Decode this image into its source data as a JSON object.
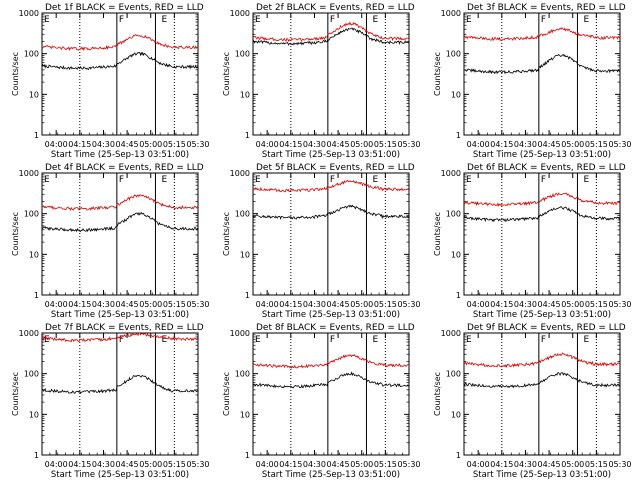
{
  "colors": {
    "events": "#000000",
    "lld": "#dd0000",
    "axes": "#000000"
  },
  "figure": {
    "xlabel": "Start Time (25-Sep-13 03:51:00)",
    "ylabel": "Counts/sec",
    "x_ticks": [
      "04:00",
      "04:15",
      "04:30",
      "04:45",
      "05:00",
      "05:15",
      "05:30"
    ],
    "y_ticks": [
      "1",
      "10",
      "100",
      "1000"
    ],
    "markers": [
      "F",
      "E"
    ],
    "title_text": {
      "suffix": "BLACK = Events, RED = LLD"
    }
  },
  "chart_data": [
    {
      "type": "line",
      "title": "Det 1f BLACK = Events, RED = LLD",
      "detector": "1f",
      "x_range_min": [
        0,
        99
      ],
      "ylim": [
        1,
        1000
      ],
      "y_scale": "log",
      "series": [
        {
          "name": "Events",
          "color": "#000000",
          "base": 50,
          "peak": 100
        },
        {
          "name": "LLD",
          "color": "#dd0000",
          "base": 150,
          "peak": 280
        }
      ]
    },
    {
      "type": "line",
      "title": "Det 2f BLACK = Events, RED = LLD",
      "detector": "2f",
      "x_range_min": [
        0,
        99
      ],
      "ylim": [
        1,
        1000
      ],
      "y_scale": "log",
      "series": [
        {
          "name": "Events",
          "color": "#000000",
          "base": 200,
          "peak": 400
        },
        {
          "name": "LLD",
          "color": "#dd0000",
          "base": 250,
          "peak": 550
        }
      ]
    },
    {
      "type": "line",
      "title": "Det 3f BLACK = Events, RED = LLD",
      "detector": "3f",
      "x_range_min": [
        0,
        99
      ],
      "ylim": [
        1,
        1000
      ],
      "y_scale": "log",
      "series": [
        {
          "name": "Events",
          "color": "#000000",
          "base": 40,
          "peak": 90
        },
        {
          "name": "LLD",
          "color": "#dd0000",
          "base": 260,
          "peak": 400
        }
      ]
    },
    {
      "type": "line",
      "title": "Det 4f BLACK = Events, RED = LLD",
      "detector": "4f",
      "x_range_min": [
        0,
        99
      ],
      "ylim": [
        1,
        1000
      ],
      "y_scale": "log",
      "series": [
        {
          "name": "Events",
          "color": "#000000",
          "base": 45,
          "peak": 100
        },
        {
          "name": "LLD",
          "color": "#dd0000",
          "base": 150,
          "peak": 280
        }
      ]
    },
    {
      "type": "line",
      "title": "Det 5f BLACK = Events, RED = LLD",
      "detector": "5f",
      "x_range_min": [
        0,
        99
      ],
      "ylim": [
        1,
        1000
      ],
      "y_scale": "log",
      "series": [
        {
          "name": "Events",
          "color": "#000000",
          "base": 90,
          "peak": 150
        },
        {
          "name": "LLD",
          "color": "#dd0000",
          "base": 420,
          "peak": 620
        }
      ]
    },
    {
      "type": "line",
      "title": "Det 6f BLACK = Events, RED = LLD",
      "detector": "6f",
      "x_range_min": [
        0,
        99
      ],
      "ylim": [
        1,
        1000
      ],
      "y_scale": "log",
      "series": [
        {
          "name": "Events",
          "color": "#000000",
          "base": 80,
          "peak": 140
        },
        {
          "name": "LLD",
          "color": "#dd0000",
          "base": 190,
          "peak": 310
        }
      ]
    },
    {
      "type": "line",
      "title": "Det 7f BLACK = Events, RED = LLD",
      "detector": "7f",
      "x_range_min": [
        0,
        99
      ],
      "ylim": [
        1,
        1000
      ],
      "y_scale": "log",
      "series": [
        {
          "name": "Events",
          "color": "#000000",
          "base": 40,
          "peak": 90
        },
        {
          "name": "LLD",
          "color": "#dd0000",
          "base": 750,
          "peak": 950
        }
      ]
    },
    {
      "type": "line",
      "title": "Det 8f BLACK = Events, RED = LLD",
      "detector": "8f",
      "x_range_min": [
        0,
        99
      ],
      "ylim": [
        1,
        1000
      ],
      "y_scale": "log",
      "series": [
        {
          "name": "Events",
          "color": "#000000",
          "base": 55,
          "peak": 100
        },
        {
          "name": "LLD",
          "color": "#dd0000",
          "base": 170,
          "peak": 280
        }
      ]
    },
    {
      "type": "line",
      "title": "Det 9f BLACK = Events, RED = LLD",
      "detector": "9f",
      "x_range_min": [
        0,
        99
      ],
      "ylim": [
        1,
        1000
      ],
      "y_scale": "log",
      "series": [
        {
          "name": "Events",
          "color": "#000000",
          "base": 55,
          "peak": 100
        },
        {
          "name": "LLD",
          "color": "#dd0000",
          "base": 180,
          "peak": 300
        }
      ]
    }
  ]
}
